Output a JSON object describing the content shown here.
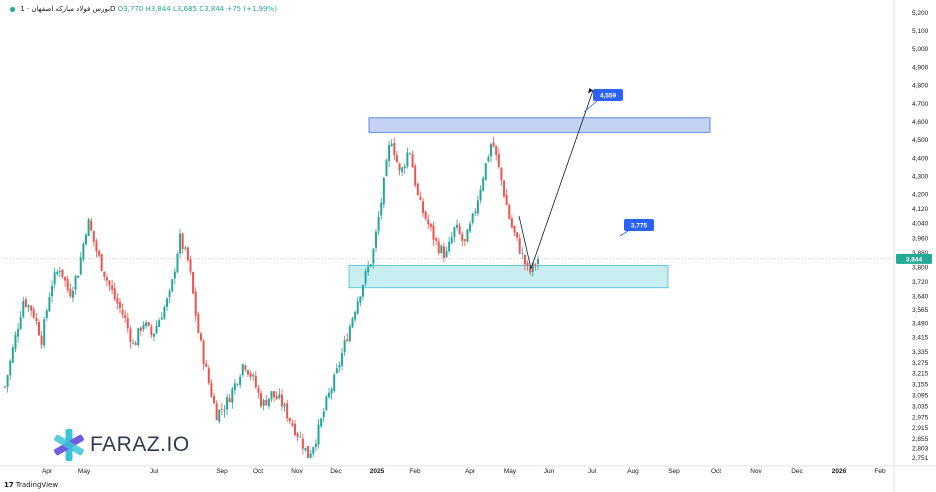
{
  "header": {
    "symbol": "بورس",
    "label": "فولاد مبارکه اصفهان · 1D",
    "open": "O3,770",
    "high": "H3,844",
    "low": "L3,685",
    "close": "C3,844",
    "change": "+75 (+1.99%)"
  },
  "watermark": {
    "brand": "FARAZ.IO",
    "icon": "faraz-star-icon"
  },
  "branding": {
    "tv_label": "TradingView",
    "tv_icon": "tradingview-17-icon"
  },
  "colors": {
    "up": "#26a69a",
    "down": "#ef5350",
    "resistance_fill": "#c4d3f4",
    "resistance_stroke": "#3d6fe0",
    "support_fill": "#c9eef2",
    "support_stroke": "#48c2cc",
    "label_bg": "#2962ff",
    "last_price_bg": "#22ab94"
  },
  "chart_data": {
    "type": "candlestick",
    "title": "",
    "ylim": [
      2710,
      5235
    ],
    "y_ticks": [
      "5,200",
      "5,100",
      "5,000",
      "4,900",
      "4,800",
      "4,700",
      "4,600",
      "4,500",
      "4,400",
      "4,300",
      "4,200",
      "4,120",
      "4,040",
      "3,960",
      "3,880",
      "3,800",
      "3,720",
      "3,640",
      "3,565",
      "3,490",
      "3,415",
      "3,335",
      "3,275",
      "3,215",
      "3,155",
      "3,095",
      "3,035",
      "2,975",
      "2,915",
      "2,855",
      "2,803",
      "2,751"
    ],
    "x_labels": [
      "Apr",
      "May",
      "Jul",
      "Sep",
      "Oct",
      "Nov",
      "Dec",
      "2025",
      "Feb",
      "Apr",
      "May",
      "Jun",
      "Jul",
      "Aug",
      "Sep",
      "Oct",
      "Nov",
      "Dec",
      "2026",
      "Feb"
    ],
    "last_price": "3,844",
    "zones": [
      {
        "name": "resistance",
        "top": 4620,
        "bottom": 4540,
        "label": "4,559"
      },
      {
        "name": "support",
        "top": 3808,
        "bottom": 3685,
        "label": "3,775"
      }
    ],
    "projection": [
      {
        "x": "May",
        "y": 3790
      },
      {
        "x": "Jul",
        "y": 4770
      }
    ],
    "price_path": [
      {
        "d": "Mar",
        "v": 3140
      },
      {
        "d": "Mar",
        "v": 3380
      },
      {
        "d": "Mar",
        "v": 3620
      },
      {
        "d": "Apr",
        "v": 3560
      },
      {
        "d": "Apr",
        "v": 3400
      },
      {
        "d": "Apr",
        "v": 3700
      },
      {
        "d": "Apr",
        "v": 3800
      },
      {
        "d": "Apr",
        "v": 3650
      },
      {
        "d": "Apr",
        "v": 3780
      },
      {
        "d": "May",
        "v": 4060
      },
      {
        "d": "May",
        "v": 3880
      },
      {
        "d": "May",
        "v": 3740
      },
      {
        "d": "May",
        "v": 3620
      },
      {
        "d": "Jun",
        "v": 3520
      },
      {
        "d": "Jun",
        "v": 3360
      },
      {
        "d": "Jun",
        "v": 3500
      },
      {
        "d": "Jun",
        "v": 3420
      },
      {
        "d": "Jul",
        "v": 3540
      },
      {
        "d": "Jul",
        "v": 3650
      },
      {
        "d": "Jul",
        "v": 3960
      },
      {
        "d": "Jul",
        "v": 3820
      },
      {
        "d": "Aug",
        "v": 3450
      },
      {
        "d": "Aug",
        "v": 3200
      },
      {
        "d": "Aug",
        "v": 2990
      },
      {
        "d": "Aug",
        "v": 3040
      },
      {
        "d": "Aug",
        "v": 3150
      },
      {
        "d": "Sep",
        "v": 3280
      },
      {
        "d": "Sep",
        "v": 3180
      },
      {
        "d": "Sep",
        "v": 3040
      },
      {
        "d": "Sep",
        "v": 3100
      },
      {
        "d": "Oct",
        "v": 3060
      },
      {
        "d": "Oct",
        "v": 2960
      },
      {
        "d": "Oct",
        "v": 2870
      },
      {
        "d": "Oct",
        "v": 2760
      },
      {
        "d": "Nov",
        "v": 2880
      },
      {
        "d": "Nov",
        "v": 3060
      },
      {
        "d": "Nov",
        "v": 3200
      },
      {
        "d": "Nov",
        "v": 3380
      },
      {
        "d": "Nov",
        "v": 3560
      },
      {
        "d": "Dec",
        "v": 3720
      },
      {
        "d": "Dec",
        "v": 3860
      },
      {
        "d": "Dec",
        "v": 4180
      },
      {
        "d": "Dec",
        "v": 4520
      },
      {
        "d": "2025",
        "v": 4300
      },
      {
        "d": "2025",
        "v": 4460
      },
      {
        "d": "2025",
        "v": 4160
      },
      {
        "d": "Feb",
        "v": 4040
      },
      {
        "d": "Feb",
        "v": 3920
      },
      {
        "d": "Feb",
        "v": 3860
      },
      {
        "d": "Mar",
        "v": 4020
      },
      {
        "d": "Mar",
        "v": 3920
      },
      {
        "d": "Mar",
        "v": 4080
      },
      {
        "d": "Apr",
        "v": 4300
      },
      {
        "d": "Apr",
        "v": 4500
      },
      {
        "d": "Apr",
        "v": 4280
      },
      {
        "d": "May",
        "v": 4040
      },
      {
        "d": "May",
        "v": 3900
      },
      {
        "d": "May",
        "v": 3760
      },
      {
        "d": "May",
        "v": 3844
      }
    ]
  }
}
